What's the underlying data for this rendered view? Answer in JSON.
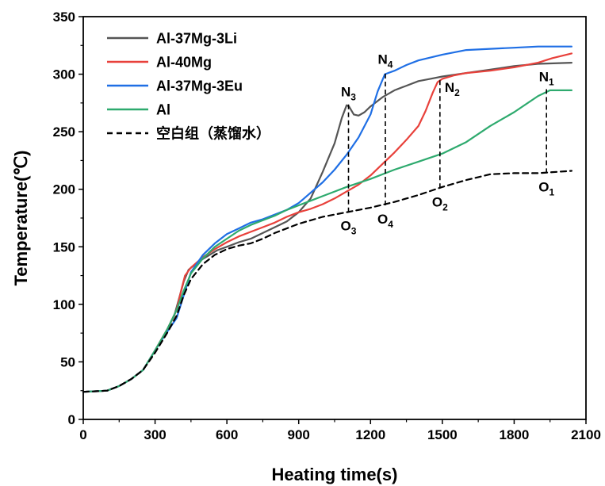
{
  "chart_data": {
    "type": "line",
    "xlabel": "Heating time(s)",
    "ylabel": "Temperature(℃)",
    "xlim": [
      0,
      2100
    ],
    "ylim": [
      0,
      350
    ],
    "xticks": [
      0,
      300,
      600,
      900,
      1200,
      1500,
      1800,
      2100
    ],
    "yticks": [
      0,
      50,
      100,
      150,
      200,
      250,
      300,
      350
    ],
    "legend_position": "top-left",
    "grid": false,
    "series": [
      {
        "name": "Al-37Mg-3Li",
        "color": "#555555",
        "dash": false,
        "points": [
          [
            0,
            24
          ],
          [
            60,
            24.5
          ],
          [
            100,
            25
          ],
          [
            150,
            29
          ],
          [
            200,
            35
          ],
          [
            250,
            43
          ],
          [
            300,
            60
          ],
          [
            350,
            78
          ],
          [
            380,
            90
          ],
          [
            400,
            105
          ],
          [
            420,
            120
          ],
          [
            440,
            130
          ],
          [
            480,
            137
          ],
          [
            520,
            142
          ],
          [
            560,
            147
          ],
          [
            600,
            150
          ],
          [
            650,
            154
          ],
          [
            700,
            157
          ],
          [
            750,
            162
          ],
          [
            800,
            167
          ],
          [
            850,
            172
          ],
          [
            900,
            180
          ],
          [
            950,
            192
          ],
          [
            1000,
            215
          ],
          [
            1050,
            240
          ],
          [
            1080,
            262
          ],
          [
            1100,
            273
          ],
          [
            1110,
            272
          ],
          [
            1130,
            265
          ],
          [
            1150,
            264
          ],
          [
            1175,
            267
          ],
          [
            1200,
            272
          ],
          [
            1250,
            280
          ],
          [
            1300,
            286
          ],
          [
            1350,
            290
          ],
          [
            1400,
            294
          ],
          [
            1450,
            296
          ],
          [
            1500,
            298
          ],
          [
            1600,
            301
          ],
          [
            1700,
            304
          ],
          [
            1800,
            307
          ],
          [
            1900,
            309
          ],
          [
            2040,
            310
          ]
        ]
      },
      {
        "name": "Al-40Mg",
        "color": "#e8413b",
        "dash": false,
        "points": [
          [
            0,
            24
          ],
          [
            60,
            24.5
          ],
          [
            100,
            25
          ],
          [
            150,
            29
          ],
          [
            200,
            35
          ],
          [
            250,
            43
          ],
          [
            300,
            60
          ],
          [
            350,
            78
          ],
          [
            390,
            95
          ],
          [
            410,
            113
          ],
          [
            425,
            125
          ],
          [
            450,
            132
          ],
          [
            500,
            141
          ],
          [
            550,
            148
          ],
          [
            600,
            154
          ],
          [
            650,
            159
          ],
          [
            700,
            163
          ],
          [
            750,
            167
          ],
          [
            800,
            171
          ],
          [
            850,
            176
          ],
          [
            900,
            180
          ],
          [
            950,
            183
          ],
          [
            1000,
            187
          ],
          [
            1050,
            192
          ],
          [
            1100,
            198
          ],
          [
            1150,
            204
          ],
          [
            1200,
            212
          ],
          [
            1250,
            222
          ],
          [
            1300,
            232
          ],
          [
            1350,
            243
          ],
          [
            1400,
            255
          ],
          [
            1430,
            268
          ],
          [
            1460,
            284
          ],
          [
            1480,
            293
          ],
          [
            1500,
            296
          ],
          [
            1550,
            299
          ],
          [
            1600,
            301
          ],
          [
            1700,
            303
          ],
          [
            1800,
            306
          ],
          [
            1900,
            310
          ],
          [
            1960,
            314
          ],
          [
            2040,
            318
          ]
        ]
      },
      {
        "name": "Al-37Mg-3Eu",
        "color": "#1f6fe5",
        "dash": false,
        "points": [
          [
            0,
            24
          ],
          [
            60,
            24.5
          ],
          [
            100,
            25
          ],
          [
            150,
            29
          ],
          [
            200,
            35
          ],
          [
            250,
            43
          ],
          [
            300,
            60
          ],
          [
            350,
            76
          ],
          [
            390,
            88
          ],
          [
            420,
            108
          ],
          [
            450,
            128
          ],
          [
            500,
            143
          ],
          [
            550,
            153
          ],
          [
            600,
            161
          ],
          [
            650,
            166
          ],
          [
            700,
            171
          ],
          [
            750,
            174
          ],
          [
            800,
            178
          ],
          [
            850,
            182
          ],
          [
            900,
            188
          ],
          [
            950,
            197
          ],
          [
            1000,
            206
          ],
          [
            1050,
            217
          ],
          [
            1100,
            230
          ],
          [
            1150,
            245
          ],
          [
            1200,
            265
          ],
          [
            1230,
            285
          ],
          [
            1260,
            300
          ],
          [
            1300,
            303
          ],
          [
            1350,
            308
          ],
          [
            1400,
            312
          ],
          [
            1500,
            317
          ],
          [
            1600,
            321
          ],
          [
            1700,
            322
          ],
          [
            1800,
            323
          ],
          [
            1900,
            324
          ],
          [
            2040,
            324
          ]
        ]
      },
      {
        "name": "Al",
        "color": "#2eaa6e",
        "dash": false,
        "points": [
          [
            0,
            24
          ],
          [
            60,
            24.5
          ],
          [
            100,
            25
          ],
          [
            150,
            29
          ],
          [
            200,
            35
          ],
          [
            250,
            43
          ],
          [
            300,
            60
          ],
          [
            350,
            78
          ],
          [
            390,
            95
          ],
          [
            420,
            112
          ],
          [
            450,
            127
          ],
          [
            500,
            140
          ],
          [
            550,
            150
          ],
          [
            600,
            157
          ],
          [
            650,
            164
          ],
          [
            700,
            169
          ],
          [
            750,
            173
          ],
          [
            800,
            177
          ],
          [
            850,
            182
          ],
          [
            900,
            186
          ],
          [
            950,
            190
          ],
          [
            1000,
            194
          ],
          [
            1050,
            198
          ],
          [
            1100,
            202
          ],
          [
            1200,
            209
          ],
          [
            1300,
            217
          ],
          [
            1400,
            224
          ],
          [
            1500,
            231
          ],
          [
            1600,
            241
          ],
          [
            1700,
            255
          ],
          [
            1800,
            267
          ],
          [
            1900,
            281
          ],
          [
            1950,
            286
          ],
          [
            2000,
            286
          ],
          [
            2040,
            286
          ]
        ]
      },
      {
        "name": "空白组（蒸馏水）",
        "color": "#000000",
        "dash": true,
        "points": [
          [
            0,
            24
          ],
          [
            60,
            24.5
          ],
          [
            100,
            25
          ],
          [
            150,
            29
          ],
          [
            200,
            35
          ],
          [
            250,
            43
          ],
          [
            300,
            58
          ],
          [
            350,
            75
          ],
          [
            390,
            90
          ],
          [
            420,
            108
          ],
          [
            450,
            122
          ],
          [
            500,
            135
          ],
          [
            550,
            143
          ],
          [
            600,
            148
          ],
          [
            650,
            151
          ],
          [
            700,
            153
          ],
          [
            750,
            157
          ],
          [
            800,
            162
          ],
          [
            850,
            166
          ],
          [
            900,
            170
          ],
          [
            950,
            173
          ],
          [
            1000,
            176
          ],
          [
            1050,
            178
          ],
          [
            1100,
            180
          ],
          [
            1150,
            182
          ],
          [
            1200,
            184
          ],
          [
            1300,
            189
          ],
          [
            1400,
            195
          ],
          [
            1500,
            202
          ],
          [
            1600,
            208
          ],
          [
            1700,
            213
          ],
          [
            1800,
            214
          ],
          [
            1900,
            214
          ],
          [
            2040,
            216
          ]
        ]
      }
    ],
    "annotations": [
      {
        "base": "N",
        "sub": "3",
        "x": 1108,
        "y": 274,
        "pos": "above"
      },
      {
        "base": "O",
        "sub": "3",
        "x": 1108,
        "y": 180,
        "pos": "below"
      },
      {
        "base": "N",
        "sub": "4",
        "x": 1262,
        "y": 302,
        "pos": "above"
      },
      {
        "base": "O",
        "sub": "4",
        "x": 1262,
        "y": 186,
        "pos": "below"
      },
      {
        "base": "N",
        "sub": "2",
        "x": 1490,
        "y": 297,
        "pos": "right"
      },
      {
        "base": "O",
        "sub": "2",
        "x": 1490,
        "y": 201,
        "pos": "below"
      },
      {
        "base": "N",
        "sub": "1",
        "x": 1935,
        "y": 287,
        "pos": "above"
      },
      {
        "base": "O",
        "sub": "1",
        "x": 1935,
        "y": 214,
        "pos": "below"
      }
    ],
    "guides": [
      {
        "x": 1108,
        "y1": 180,
        "y2": 274
      },
      {
        "x": 1262,
        "y1": 186,
        "y2": 302
      },
      {
        "x": 1490,
        "y1": 201,
        "y2": 297
      },
      {
        "x": 1935,
        "y1": 214,
        "y2": 287
      }
    ]
  }
}
